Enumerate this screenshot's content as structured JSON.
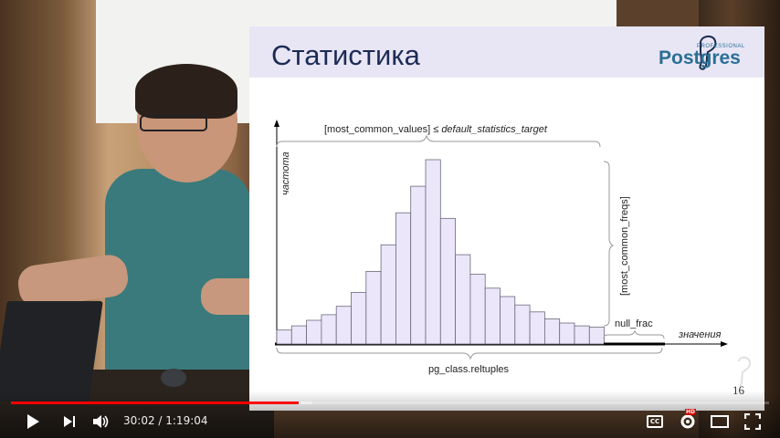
{
  "slide": {
    "title": "Статистика",
    "logo_professional": "PROFESSIONAL",
    "logo_name": "Postgres",
    "page_number": "16"
  },
  "chart_data": {
    "type": "bar",
    "values": [
      1.0,
      1.3,
      1.7,
      2.1,
      2.7,
      3.7,
      5.2,
      7.1,
      9.4,
      11.3,
      13.2,
      9.0,
      6.4,
      5.0,
      4.0,
      3.4,
      2.8,
      2.3,
      1.8,
      1.5,
      1.3,
      1.2
    ],
    "y_axis_label": "частота",
    "x_axis_label": "значения",
    "top_brace_label_prefix": "[most_common_values] ≤ ",
    "top_brace_label_italic": "default_statistics_target",
    "right_brace_label": "[most_common_freqs]",
    "null_frac_label": "null_frac",
    "bottom_brace_label": "pg_class.reltuples",
    "bar_fill": "#ece6fb",
    "bar_stroke": "#6a6a7a"
  },
  "player": {
    "current_time": "30:02",
    "duration": "1:19:04",
    "time_display": "30:02 / 1:19:04",
    "played_fraction": 0.38,
    "buffered_fraction": 0.397,
    "progress_color": "#ff0000",
    "cc_label": "CC",
    "hd_label": "HD",
    "icons": [
      "play-icon",
      "next-icon",
      "volume-icon",
      "captions-icon",
      "settings-icon",
      "theater-mode-icon",
      "fullscreen-icon"
    ]
  }
}
